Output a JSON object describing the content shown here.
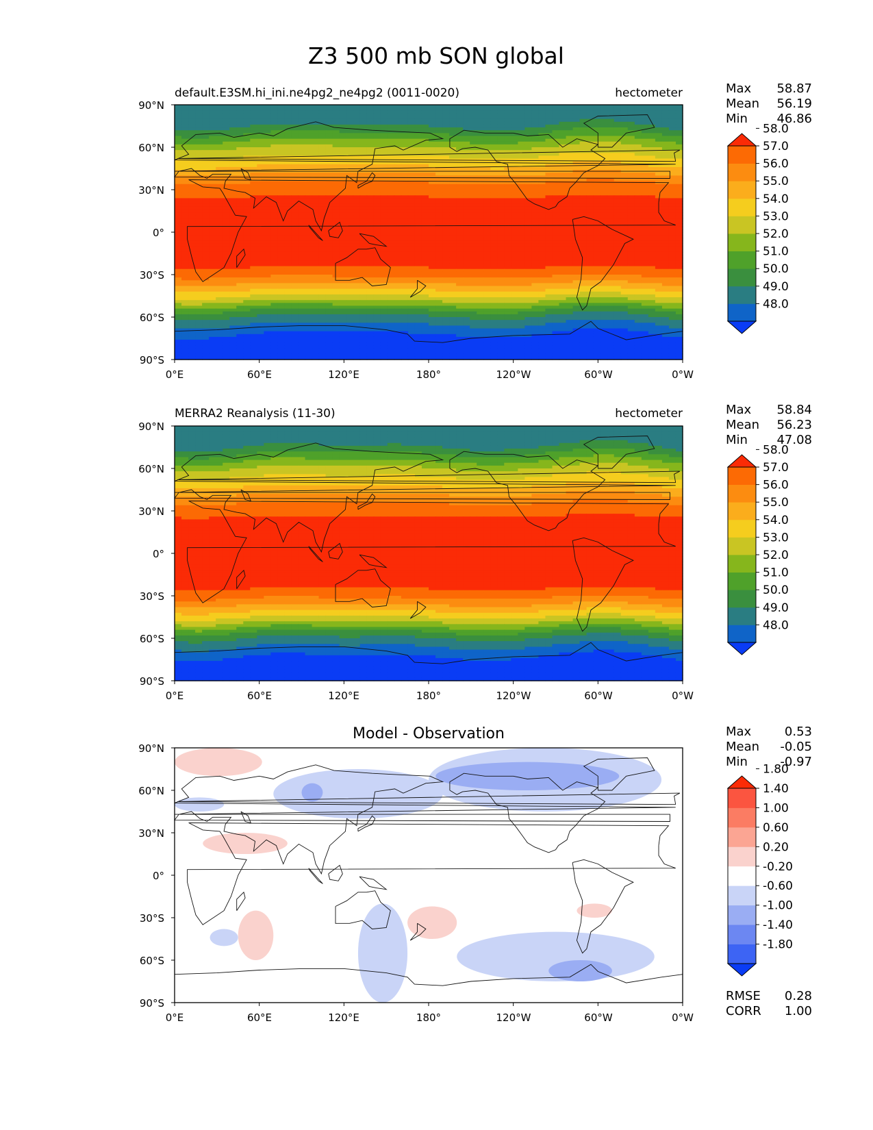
{
  "figure": {
    "title": "Z3 500 mb SON global"
  },
  "panels": [
    {
      "title_left": "default.E3SM.hi_ini.ne4pg2_ne4pg2 (0011-0020)",
      "title_center": "",
      "title_right": "hectometer",
      "stats": [
        {
          "label": "Max",
          "value": "58.87"
        },
        {
          "label": "Mean",
          "value": "56.19"
        },
        {
          "label": "Min",
          "value": "46.86"
        }
      ],
      "extra_stats": [],
      "colorbar": {
        "colors": [
          "#0a3cf5",
          "#0f64c8",
          "#2a7d82",
          "#3a8f3e",
          "#4fa12a",
          "#86b61c",
          "#c9c523",
          "#f5cd1e",
          "#fbad1c",
          "#fc8c10",
          "#fc6a04",
          "#fb2b06"
        ],
        "tick_labels": [
          "48.0",
          "49.0",
          "50.0",
          "51.0",
          "52.0",
          "53.0",
          "54.0",
          "55.0",
          "56.0",
          "57.0",
          "58.0"
        ]
      }
    },
    {
      "title_left": "MERRA2 Reanalysis (11-30)",
      "title_center": "",
      "title_right": "hectometer",
      "stats": [
        {
          "label": "Max",
          "value": "58.84"
        },
        {
          "label": "Mean",
          "value": "56.23"
        },
        {
          "label": "Min",
          "value": "47.08"
        }
      ],
      "extra_stats": [],
      "colorbar": {
        "colors": [
          "#0a3cf5",
          "#0f64c8",
          "#2a7d82",
          "#3a8f3e",
          "#4fa12a",
          "#86b61c",
          "#c9c523",
          "#f5cd1e",
          "#fbad1c",
          "#fc8c10",
          "#fc6a04",
          "#fb2b06"
        ],
        "tick_labels": [
          "48.0",
          "49.0",
          "50.0",
          "51.0",
          "52.0",
          "53.0",
          "54.0",
          "55.0",
          "56.0",
          "57.0",
          "58.0"
        ]
      }
    },
    {
      "title_left": "",
      "title_center": "Model - Observation",
      "title_right": "",
      "stats": [
        {
          "label": "Max",
          "value": "0.53"
        },
        {
          "label": "Mean",
          "value": "-0.05"
        },
        {
          "label": "Min",
          "value": "-0.97"
        }
      ],
      "extra_stats": [
        {
          "label": "RMSE",
          "value": "0.28"
        },
        {
          "label": "CORR",
          "value": "1.00"
        }
      ],
      "colorbar": {
        "colors": [
          "#0a3cf5",
          "#3d64f4",
          "#6c87f2",
          "#9aadf3",
          "#c9d4f7",
          "#ffffff",
          "#fad2cd",
          "#fba593",
          "#fb7c63",
          "#fb5540",
          "#fb2b06"
        ],
        "tick_labels": [
          "-1.80",
          "-1.40",
          "-1.00",
          "-0.60",
          "-0.20",
          "0.20",
          "0.60",
          "1.00",
          "1.40",
          "1.80"
        ]
      }
    }
  ],
  "axes": {
    "x_tick_labels": [
      "0°E",
      "60°E",
      "120°E",
      "180°",
      "120°W",
      "60°W",
      "0°W"
    ],
    "y_tick_labels": [
      "90°N",
      "60°N",
      "30°N",
      "0°",
      "30°S",
      "60°S",
      "90°S"
    ]
  },
  "chart_data": [
    {
      "type": "heatmap",
      "title": "default.E3SM.hi_ini.ne4pg2_ne4pg2 (0011-0020)",
      "units": "hectometer",
      "x_range": [
        0,
        360
      ],
      "y_range": [
        -90,
        90
      ],
      "zonal_profile": {
        "lat": [
          90,
          80,
          75,
          70,
          65,
          60,
          55,
          50,
          45,
          40,
          35,
          30,
          25,
          20,
          -20,
          -25,
          -30,
          -35,
          -40,
          -45,
          -50,
          -55,
          -60,
          -65,
          -70,
          -75,
          -90
        ],
        "value": [
          49.0,
          49.3,
          50.0,
          51.0,
          52.0,
          53.0,
          53.8,
          54.5,
          55.3,
          56.2,
          57.0,
          57.6,
          58.0,
          58.3,
          58.3,
          58.0,
          57.3,
          56.3,
          55.2,
          54.0,
          52.6,
          51.0,
          49.8,
          49.0,
          48.2,
          47.6,
          47.2
        ]
      },
      "stats": {
        "max": 58.87,
        "mean": 56.19,
        "min": 46.86
      },
      "contour_levels": [
        48,
        49,
        50,
        51,
        52,
        53,
        54,
        55,
        56,
        57,
        58
      ]
    },
    {
      "type": "heatmap",
      "title": "MERRA2 Reanalysis (11-30)",
      "units": "hectometer",
      "x_range": [
        0,
        360
      ],
      "y_range": [
        -90,
        90
      ],
      "zonal_profile": {
        "lat": [
          90,
          80,
          75,
          70,
          65,
          60,
          55,
          50,
          45,
          40,
          35,
          30,
          25,
          20,
          -20,
          -25,
          -30,
          -35,
          -40,
          -45,
          -50,
          -55,
          -60,
          -65,
          -70,
          -75,
          -90
        ],
        "value": [
          49.1,
          49.4,
          50.1,
          51.1,
          52.1,
          53.1,
          53.9,
          54.6,
          55.4,
          56.3,
          57.1,
          57.7,
          58.1,
          58.3,
          58.3,
          58.0,
          57.3,
          56.3,
          55.2,
          54.0,
          52.6,
          51.1,
          49.9,
          49.1,
          48.3,
          47.7,
          47.3
        ]
      },
      "stats": {
        "max": 58.84,
        "mean": 56.23,
        "min": 47.08
      },
      "contour_levels": [
        48,
        49,
        50,
        51,
        52,
        53,
        54,
        55,
        56,
        57,
        58
      ]
    },
    {
      "type": "heatmap",
      "title": "Model - Observation",
      "x_range": [
        0,
        360
      ],
      "y_range": [
        -90,
        90
      ],
      "stats": {
        "max": 0.53,
        "mean": -0.05,
        "min": -0.97,
        "rmse": 0.28,
        "corr": 1.0
      },
      "contour_levels": [
        -1.8,
        -1.4,
        -1.0,
        -0.6,
        -0.2,
        0.2,
        0.6,
        1.0,
        1.4,
        1.8
      ],
      "anomalies": [
        {
          "sign": "positive",
          "value": 0.4,
          "lon": [
            0,
            62
          ],
          "lat": [
            70,
            90
          ]
        },
        {
          "sign": "positive",
          "value": 0.4,
          "lon": [
            20,
            80
          ],
          "lat": [
            15,
            30
          ]
        },
        {
          "sign": "positive",
          "value": 0.4,
          "lon": [
            45,
            70
          ],
          "lat": [
            -60,
            -25
          ]
        },
        {
          "sign": "positive",
          "value": 0.4,
          "lon": [
            165,
            200
          ],
          "lat": [
            -45,
            -22
          ]
        },
        {
          "sign": "positive",
          "value": 0.4,
          "lon": [
            285,
            310
          ],
          "lat": [
            -30,
            -20
          ]
        },
        {
          "sign": "negative",
          "value": -0.4,
          "lon": [
            70,
            190
          ],
          "lat": [
            40,
            75
          ]
        },
        {
          "sign": "negative",
          "value": -0.4,
          "lon": [
            180,
            345
          ],
          "lat": [
            45,
            90
          ]
        },
        {
          "sign": "negative",
          "value": -0.8,
          "lon": [
            90,
            105
          ],
          "lat": [
            52,
            65
          ]
        },
        {
          "sign": "negative",
          "value": -0.8,
          "lon": [
            185,
            315
          ],
          "lat": [
            60,
            80
          ]
        },
        {
          "sign": "negative",
          "value": -0.4,
          "lon": [
            0,
            35
          ],
          "lat": [
            45,
            55
          ]
        },
        {
          "sign": "negative",
          "value": -0.4,
          "lon": [
            130,
            165
          ],
          "lat": [
            -90,
            -20
          ]
        },
        {
          "sign": "negative",
          "value": -0.4,
          "lon": [
            200,
            340
          ],
          "lat": [
            -75,
            -40
          ]
        },
        {
          "sign": "negative",
          "value": -0.8,
          "lon": [
            265,
            310
          ],
          "lat": [
            -75,
            -60
          ]
        },
        {
          "sign": "negative",
          "value": -0.4,
          "lon": [
            25,
            45
          ],
          "lat": [
            -50,
            -38
          ]
        }
      ]
    }
  ]
}
